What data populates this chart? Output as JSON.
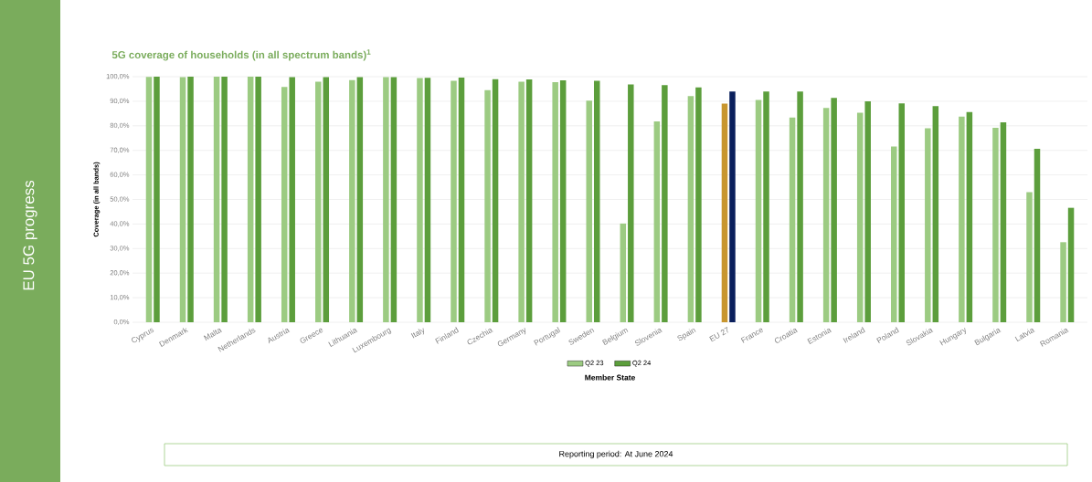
{
  "chart_data": {
    "type": "bar",
    "title": "5G coverage of households (in all spectrum bands)$^{1}$",
    "xlabel": "Member State",
    "ylabel": "Coverage (in all bands)",
    "annotations": [
      "EU 5G progress",
      "Reporting period: At June 2024"
    ],
    "categories": [
      "Cyprus",
      "Denmark",
      "Malta",
      "Netherlands",
      "Austria",
      "Greece",
      "Lithuania",
      "Luxembourg",
      "Italy",
      "Finland",
      "Czechia",
      "Germany",
      "Portugal",
      "Sweden",
      "Belgium",
      "Slovenia",
      "Spain",
      "EU 27",
      "France",
      "Croatia",
      "Estonia",
      "Ireland",
      "Poland",
      "Slovakia",
      "Hungary",
      "Bulgaria",
      "Latvia",
      "Romania"
    ],
    "series": [
      {
        "name": "Q2 23",
        "color": "#9ccb82",
        "values": [
          99.9,
          99.8,
          100,
          100,
          95.8,
          98,
          98.6,
          99.8,
          99.4,
          98.3,
          94.5,
          98,
          97.8,
          90.2,
          40.2,
          81.8,
          92.1,
          89,
          90.5,
          83.4,
          87.3,
          85.3,
          71.6,
          79,
          83.7,
          79.2,
          53,
          32.6
        ],
        "colors": [
          "#9ccb82",
          "#9ccb82",
          "#9ccb82",
          "#9ccb82",
          "#9ccb82",
          "#9ccb82",
          "#9ccb82",
          "#9ccb82",
          "#9ccb82",
          "#9ccb82",
          "#9ccb82",
          "#9ccb82",
          "#9ccb82",
          "#9ccb82",
          "#9ccb82",
          "#9ccb82",
          "#9ccb82",
          "#c8962e",
          "#9ccb82",
          "#9ccb82",
          "#9ccb82",
          "#9ccb82",
          "#9ccb82",
          "#9ccb82",
          "#9ccb82",
          "#9ccb82",
          "#9ccb82",
          "#9ccb82"
        ]
      },
      {
        "name": "Q2 24",
        "color": "#5c9e3c",
        "values": [
          100,
          100,
          100,
          100,
          99.8,
          99.8,
          99.8,
          99.8,
          99.5,
          99.6,
          99,
          98.9,
          98.5,
          98.3,
          96.8,
          96.6,
          95.6,
          94,
          94,
          94,
          91.4,
          90,
          89.1,
          88,
          85.6,
          81.4,
          70.6,
          46.6
        ],
        "colors": [
          "#5c9e3c",
          "#5c9e3c",
          "#5c9e3c",
          "#5c9e3c",
          "#5c9e3c",
          "#5c9e3c",
          "#5c9e3c",
          "#5c9e3c",
          "#5c9e3c",
          "#5c9e3c",
          "#5c9e3c",
          "#5c9e3c",
          "#5c9e3c",
          "#5c9e3c",
          "#5c9e3c",
          "#5c9e3c",
          "#5c9e3c",
          "#0a1f5c",
          "#5c9e3c",
          "#5c9e3c",
          "#5c9e3c",
          "#5c9e3c",
          "#5c9e3c",
          "#5c9e3c",
          "#5c9e3c",
          "#5c9e3c",
          "#5c9e3c",
          "#5c9e3c"
        ]
      }
    ],
    "ylim": [
      0,
      100
    ],
    "yticks": [
      {
        "value": 0,
        "label": "0,0%"
      },
      {
        "value": 10,
        "label": "10,0%"
      },
      {
        "value": 20,
        "label": "20,0%"
      },
      {
        "value": 30,
        "label": "30,0%"
      },
      {
        "value": 40,
        "label": "40,0%"
      },
      {
        "value": 50,
        "label": "50,0%"
      },
      {
        "value": 60,
        "label": "60,0%"
      },
      {
        "value": 70,
        "label": "70,0%"
      },
      {
        "value": 80,
        "label": "80,0%"
      },
      {
        "value": 90,
        "label": "90,0%"
      },
      {
        "value": 100,
        "label": "100,0%"
      }
    ],
    "grid": "y",
    "legend": "bottom"
  }
}
